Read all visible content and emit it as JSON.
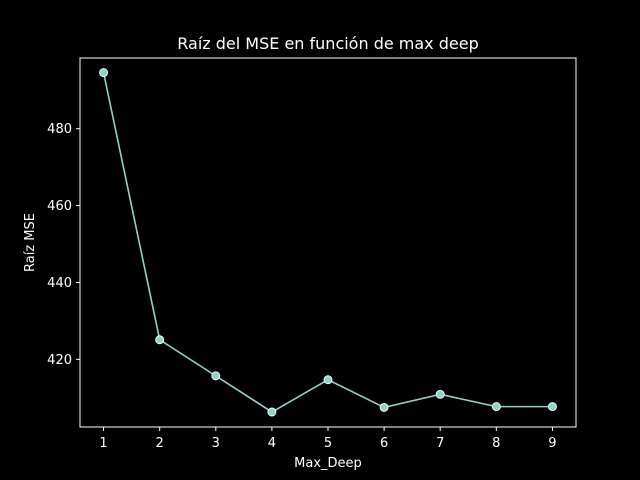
{
  "colors": {
    "background": "#000000",
    "foreground": "#ffffff",
    "series": "#8dd3c7",
    "marker_edge": "#ffffff"
  },
  "chart_data": {
    "type": "line",
    "title": "Raíz del MSE en función de max deep",
    "xlabel": "Max_Deep",
    "ylabel": "Raíz MSE",
    "x": [
      1,
      2,
      3,
      4,
      5,
      6,
      7,
      8,
      9
    ],
    "x_ticks": [
      1,
      2,
      3,
      4,
      5,
      6,
      7,
      8,
      9
    ],
    "y_ticks": [
      420,
      440,
      460,
      480
    ],
    "xlim": [
      0.58,
      9.42
    ],
    "ylim": [
      402.4,
      498.4
    ],
    "series": [
      {
        "values": [
          494.6,
          425.1,
          415.7,
          406.3,
          414.7,
          407.5,
          410.9,
          407.7,
          407.7
        ]
      }
    ],
    "grid": false,
    "legend": "none",
    "marker": "circle"
  }
}
